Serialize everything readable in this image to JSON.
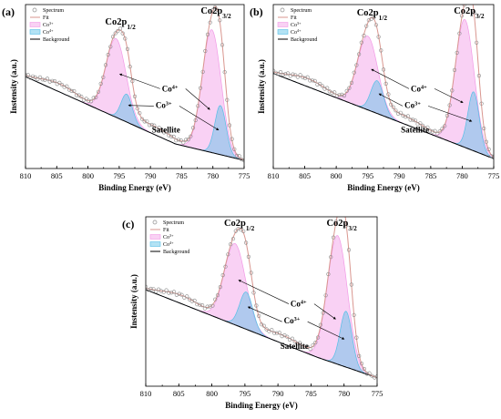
{
  "colors": {
    "spectrum": "#8a8a8a",
    "fit": "#d9968f",
    "co3": "#f29ae6",
    "co4": "#56bfe6",
    "background": "#000000"
  },
  "chart_data": [
    {
      "type": "line",
      "panel_label": "(a)",
      "xlabel": "Binding Energy (eV)",
      "ylabel": "Instensity (a.u.)",
      "xlim": [
        810,
        775
      ],
      "xticks": [
        810,
        805,
        800,
        795,
        790,
        785,
        780,
        775
      ],
      "legend": [
        "Spectrum",
        "Fit",
        "Co3+",
        "Co4+",
        "Background"
      ],
      "legend_location": "top-left",
      "annotations": {
        "peak_left": "Co2p1/2",
        "peak_right": "Co2p3/2",
        "co4": "Co4+",
        "co3": "Co3+",
        "satellite": "Satellite"
      },
      "background": {
        "start": 0.56,
        "knee_x": 786,
        "knee_y": 0.15,
        "end": 0.05
      },
      "peaks": {
        "co3": [
          {
            "center": 795.5,
            "height": 0.48,
            "width": 1.6
          },
          {
            "center": 780.2,
            "height": 0.75,
            "width": 1.5
          }
        ],
        "co4": [
          {
            "center": 793.8,
            "height": 0.17,
            "width": 0.9
          },
          {
            "center": 778.8,
            "height": 0.3,
            "width": 0.9
          }
        ]
      }
    },
    {
      "type": "line",
      "panel_label": "(b)",
      "xlabel": "Binding Energy (eV)",
      "ylabel": "Instensity (a.u.)",
      "xlim": [
        810,
        775
      ],
      "xticks": [
        810,
        805,
        800,
        795,
        790,
        785,
        780,
        775
      ],
      "legend": [
        "Spectrum",
        "Fit",
        "Co3+",
        "Co4+",
        "Background"
      ],
      "legend_location": "top-left",
      "annotations": {
        "peak_left": "Co2p1/2",
        "peak_right": "Co2p3/2",
        "co4": "Co4+",
        "co3": "Co3+",
        "satellite": "Satellite"
      },
      "background": {
        "start": 0.58,
        "knee_x": 783,
        "knee_y": 0.18,
        "end": 0.06
      },
      "peaks": {
        "co3": [
          {
            "center": 795.0,
            "height": 0.45,
            "width": 1.6
          },
          {
            "center": 779.6,
            "height": 0.78,
            "width": 1.5
          }
        ],
        "co4": [
          {
            "center": 793.5,
            "height": 0.2,
            "width": 1.0
          },
          {
            "center": 778.2,
            "height": 0.36,
            "width": 0.9
          }
        ]
      }
    },
    {
      "type": "line",
      "panel_label": "(c)",
      "xlabel": "Binding Energy (eV)",
      "ylabel": "Instensity (a.u.)",
      "xlim": [
        810,
        775
      ],
      "xticks": [
        810,
        805,
        800,
        795,
        790,
        785,
        780,
        775
      ],
      "legend": [
        "Spectrum",
        "Fit",
        "Co3+",
        "Co4+",
        "Background"
      ],
      "legend_location": "top-left",
      "annotations": {
        "peak_left": "Co2p1/2",
        "peak_right": "Co2p3/2",
        "co4": "Co4+",
        "co3": "Co3+",
        "satellite": "Satellite"
      },
      "background": {
        "start": 0.57,
        "knee_x": 784,
        "knee_y": 0.17,
        "end": 0.05
      },
      "peaks": {
        "co3": [
          {
            "center": 796.5,
            "height": 0.48,
            "width": 1.6
          },
          {
            "center": 781.0,
            "height": 0.76,
            "width": 1.5
          }
        ],
        "co4": [
          {
            "center": 794.8,
            "height": 0.22,
            "width": 1.0
          },
          {
            "center": 779.7,
            "height": 0.33,
            "width": 0.9
          }
        ]
      }
    }
  ]
}
